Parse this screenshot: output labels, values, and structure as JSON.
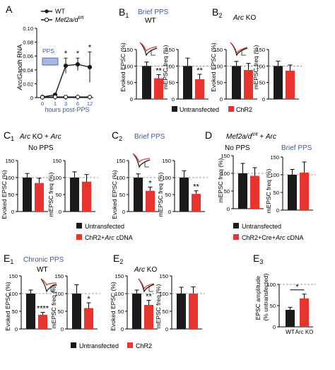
{
  "colors": {
    "black": "#1a1a1a",
    "red": "#e8342e",
    "blue": "#3a57a8",
    "pps_box": "#a9b8de",
    "gray": "#808080"
  },
  "panel_labels": {
    "A": "A",
    "B1": "B",
    "B1_sub": "1",
    "B2": "B",
    "B2_sub": "2",
    "C1": "C",
    "C1_sub": "1",
    "C2": "C",
    "C2_sub": "2",
    "D": "D",
    "E1": "E",
    "E1_sub": "1",
    "E2": "E",
    "E2_sub": "2",
    "E3": "E",
    "E3_sub": "3"
  },
  "headings": {
    "B1_blue": "Brief PPS",
    "B1_black": "WT",
    "B2_italic": "Arc",
    "B2_rest": " KO",
    "C1_a": "Arc",
    "C1_b": " KO + ",
    "C1_c": "Arc",
    "C1_d": "No PPS",
    "C2_blue": "Brief PPS",
    "D_a": "Mef2a/d",
    "D_sup": "fl/fl",
    "D_b": " + ",
    "D_c": "Arc",
    "D_left": "No PPS",
    "D_right": "Brief PPS",
    "E1_blue": "Chronic PPS",
    "E1_black": "WT",
    "E2_italic": "Arc",
    "E2_rest": " KO"
  },
  "panelA": {
    "legend_wt": "WT",
    "legend_mef2": "Mef2a/d",
    "legend_mef2_sup": "fl/fl",
    "ylabel_italic": "Arc/Gapdh",
    "ylabel_rest": " RNA",
    "xlabel": "hours post-PPS",
    "pps_label": "PPS"
  },
  "axis_labels": {
    "evoked": "Evoked EPSC (%)",
    "mepsc": "mEPSC freq (%)",
    "e3_line1": "EPSC amplitude",
    "e3_line2": "(% untransfected)"
  },
  "legends": {
    "untransfected": "Untransfected",
    "chr2": "ChR2",
    "chr2_arc_a": "ChR2+",
    "chr2_arc_b": "Arc",
    "chr2_arc_c": " cDNA",
    "chr2_cre_a": "ChR2+Cre+",
    "chr2_cre_b": "Arc",
    "chr2_cre_c": " cDNA"
  },
  "chart_data": [
    {
      "panel": "A",
      "type": "line",
      "x": [
        0,
        1,
        3,
        6,
        12
      ],
      "xticks": [
        "0",
        "1",
        "3",
        "6",
        "12"
      ],
      "ylim": [
        0,
        0.1
      ],
      "yticks": [
        "0",
        "0.02",
        "0.04",
        "0.06",
        "0.08",
        "0.10"
      ],
      "ylabel": "Arc/Gapdh RNA",
      "xlabel": "hours post-PPS",
      "series": [
        {
          "name": "WT",
          "values": [
            0.001,
            0.004,
            0.046,
            0.048,
            0.044
          ],
          "errors": [
            0.0005,
            0.002,
            0.011,
            0.009,
            0.022
          ]
        },
        {
          "name": "Mef2a/d fl/fl",
          "values": [
            0.0005,
            0.001,
            0.001,
            0.001,
            0.001
          ],
          "errors": [
            0.0003,
            0.0005,
            0.0005,
            0.0005,
            0.0005
          ]
        }
      ],
      "annotations": [
        "*",
        "*",
        "*"
      ],
      "legend": "top-left"
    },
    {
      "panel": "B1",
      "ylabel": "Evoked EPSC (%)",
      "type": "bar",
      "ylim": [
        0,
        150
      ],
      "yticks": [
        "0",
        "50",
        "100",
        "150"
      ],
      "values": [
        100,
        63
      ],
      "errors": [
        12,
        11
      ],
      "annotation": "**"
    },
    {
      "panel": "B1",
      "ylabel": "mEPSC freq (%)",
      "type": "bar",
      "ylim": [
        0,
        150
      ],
      "yticks": [
        "0",
        "50",
        "100",
        "150"
      ],
      "values": [
        100,
        60
      ],
      "errors": [
        24,
        15
      ],
      "annotation": "**"
    },
    {
      "panel": "B2",
      "ylabel": "Evoked EPSC (%)",
      "type": "bar",
      "ylim": [
        0,
        150
      ],
      "yticks": [
        "0",
        "50",
        "100",
        "150"
      ],
      "values": [
        100,
        88
      ],
      "errors": [
        14,
        20
      ]
    },
    {
      "panel": "B2",
      "ylabel": "mEPSC freq (%)",
      "type": "bar",
      "ylim": [
        0,
        150
      ],
      "yticks": [
        "0",
        "50",
        "100",
        "150"
      ],
      "values": [
        100,
        86
      ],
      "errors": [
        15,
        17
      ]
    },
    {
      "panel": "C1",
      "ylabel": "Evoked EPSC (%)",
      "type": "bar",
      "ylim": [
        0,
        150
      ],
      "yticks": [
        "0",
        "50",
        "100",
        "150"
      ],
      "values": [
        100,
        84
      ],
      "errors": [
        12,
        14
      ]
    },
    {
      "panel": "C1",
      "ylabel": "mEPSC freq (%)",
      "type": "bar",
      "ylim": [
        0,
        150
      ],
      "yticks": [
        "0",
        "50",
        "100",
        "150"
      ],
      "values": [
        100,
        88
      ],
      "errors": [
        17,
        21
      ]
    },
    {
      "panel": "C2",
      "ylabel": "Evoked EPSC (%)",
      "type": "bar",
      "ylim": [
        0,
        150
      ],
      "yticks": [
        "0",
        "50",
        "100",
        "150"
      ],
      "values": [
        100,
        61
      ],
      "errors": [
        11,
        11
      ],
      "annotation": "*"
    },
    {
      "panel": "C2",
      "ylabel": "mEPSC freq (%)",
      "type": "bar",
      "ylim": [
        0,
        150
      ],
      "yticks": [
        "0",
        "50",
        "100",
        "150"
      ],
      "values": [
        100,
        52
      ],
      "errors": [
        20,
        9
      ],
      "annotation": "**"
    },
    {
      "panel": "D",
      "ylabel": "mEPSC freq (%)",
      "type": "bar",
      "ylim": [
        0,
        150
      ],
      "yticks": [
        "0",
        "50",
        "100",
        "150"
      ],
      "values": [
        100,
        93
      ],
      "errors": [
        28,
        23
      ]
    },
    {
      "panel": "D",
      "ylabel": "mEPSC freq (%)",
      "type": "bar",
      "ylim": [
        0,
        150
      ],
      "yticks": [
        "0",
        "50",
        "100",
        "150"
      ],
      "values": [
        100,
        106
      ],
      "errors": [
        15,
        30
      ]
    },
    {
      "panel": "E1",
      "ylabel": "Evoked EPSC (%)",
      "type": "bar",
      "ylim": [
        0,
        150
      ],
      "yticks": [
        "0",
        "50",
        "100",
        "150"
      ],
      "values": [
        100,
        40
      ],
      "errors": [
        10,
        7
      ],
      "annotation": "****"
    },
    {
      "panel": "E1",
      "ylabel": "mEPSC freq (%)",
      "type": "bar",
      "ylim": [
        0,
        150
      ],
      "yticks": [
        "0",
        "50",
        "100",
        "150"
      ],
      "values": [
        100,
        59
      ],
      "errors": [
        25,
        15
      ],
      "annotation": "*"
    },
    {
      "panel": "E2",
      "ylabel": "Evoked EPSC (%)",
      "type": "bar",
      "ylim": [
        0,
        150
      ],
      "yticks": [
        "0",
        "50",
        "100",
        "150"
      ],
      "values": [
        100,
        68
      ],
      "errors": [
        10,
        13
      ],
      "annotation": "**"
    },
    {
      "panel": "E2",
      "ylabel": "mEPSC freq (%)",
      "type": "bar",
      "ylim": [
        0,
        150
      ],
      "yticks": [
        "0",
        "50",
        "100",
        "150"
      ],
      "values": [
        100,
        100
      ],
      "errors": [
        18,
        19
      ]
    },
    {
      "panel": "E3",
      "ylabel": "EPSC amplitude (% untransfected)",
      "type": "bar",
      "categories": [
        "WT",
        "Arc KO"
      ],
      "ylim": [
        0,
        100
      ],
      "yticks": [
        "0",
        "50",
        "100"
      ],
      "values": [
        40,
        67
      ],
      "errors": [
        6,
        10
      ],
      "annotation": "*"
    }
  ]
}
